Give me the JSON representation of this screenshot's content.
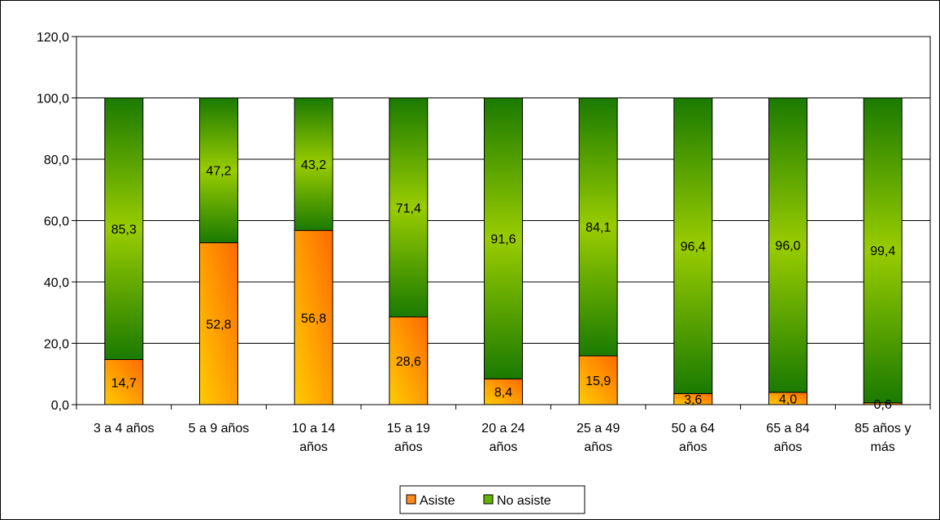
{
  "chart_data": {
    "type": "bar",
    "stacked": true,
    "title": "",
    "xlabel": "",
    "ylabel": "",
    "ylim": [
      0,
      120
    ],
    "ytick_step": 20,
    "ytick_labels": [
      "0,0",
      "20,0",
      "40,0",
      "60,0",
      "80,0",
      "100,0",
      "120,0"
    ],
    "grid": true,
    "legend_position": "bottom",
    "categories": [
      [
        "3 a 4 años"
      ],
      [
        "5 a 9 años"
      ],
      [
        "10 a 14",
        "años"
      ],
      [
        "15 a 19",
        "años"
      ],
      [
        "20 a 24",
        "años"
      ],
      [
        "25 a  49",
        "años"
      ],
      [
        "50 a 64",
        "años"
      ],
      [
        "65 a 84",
        "años"
      ],
      [
        "85 años y",
        "más"
      ]
    ],
    "series": [
      {
        "name": "Asiste",
        "color": "#ff8c1a",
        "gradient": [
          "#ffcc00",
          "#ff6a00"
        ],
        "values": [
          14.7,
          52.8,
          56.8,
          28.6,
          8.4,
          15.9,
          3.6,
          4.0,
          0.6
        ],
        "labels": [
          "14,7",
          "52,8",
          "56,8",
          "28,6",
          "8,4",
          "15,9",
          "3,6",
          "4,0",
          "0,6"
        ]
      },
      {
        "name": "No asiste",
        "color": "#66b200",
        "gradient": [
          "#1a7a00",
          "#99cc00"
        ],
        "values": [
          85.3,
          47.2,
          43.2,
          71.4,
          91.6,
          84.1,
          96.4,
          96.0,
          99.4
        ],
        "labels": [
          "85,3",
          "47,2",
          "43,2",
          "71,4",
          "91,6",
          "84,1",
          "96,4",
          "96,0",
          "99,4"
        ]
      }
    ]
  }
}
